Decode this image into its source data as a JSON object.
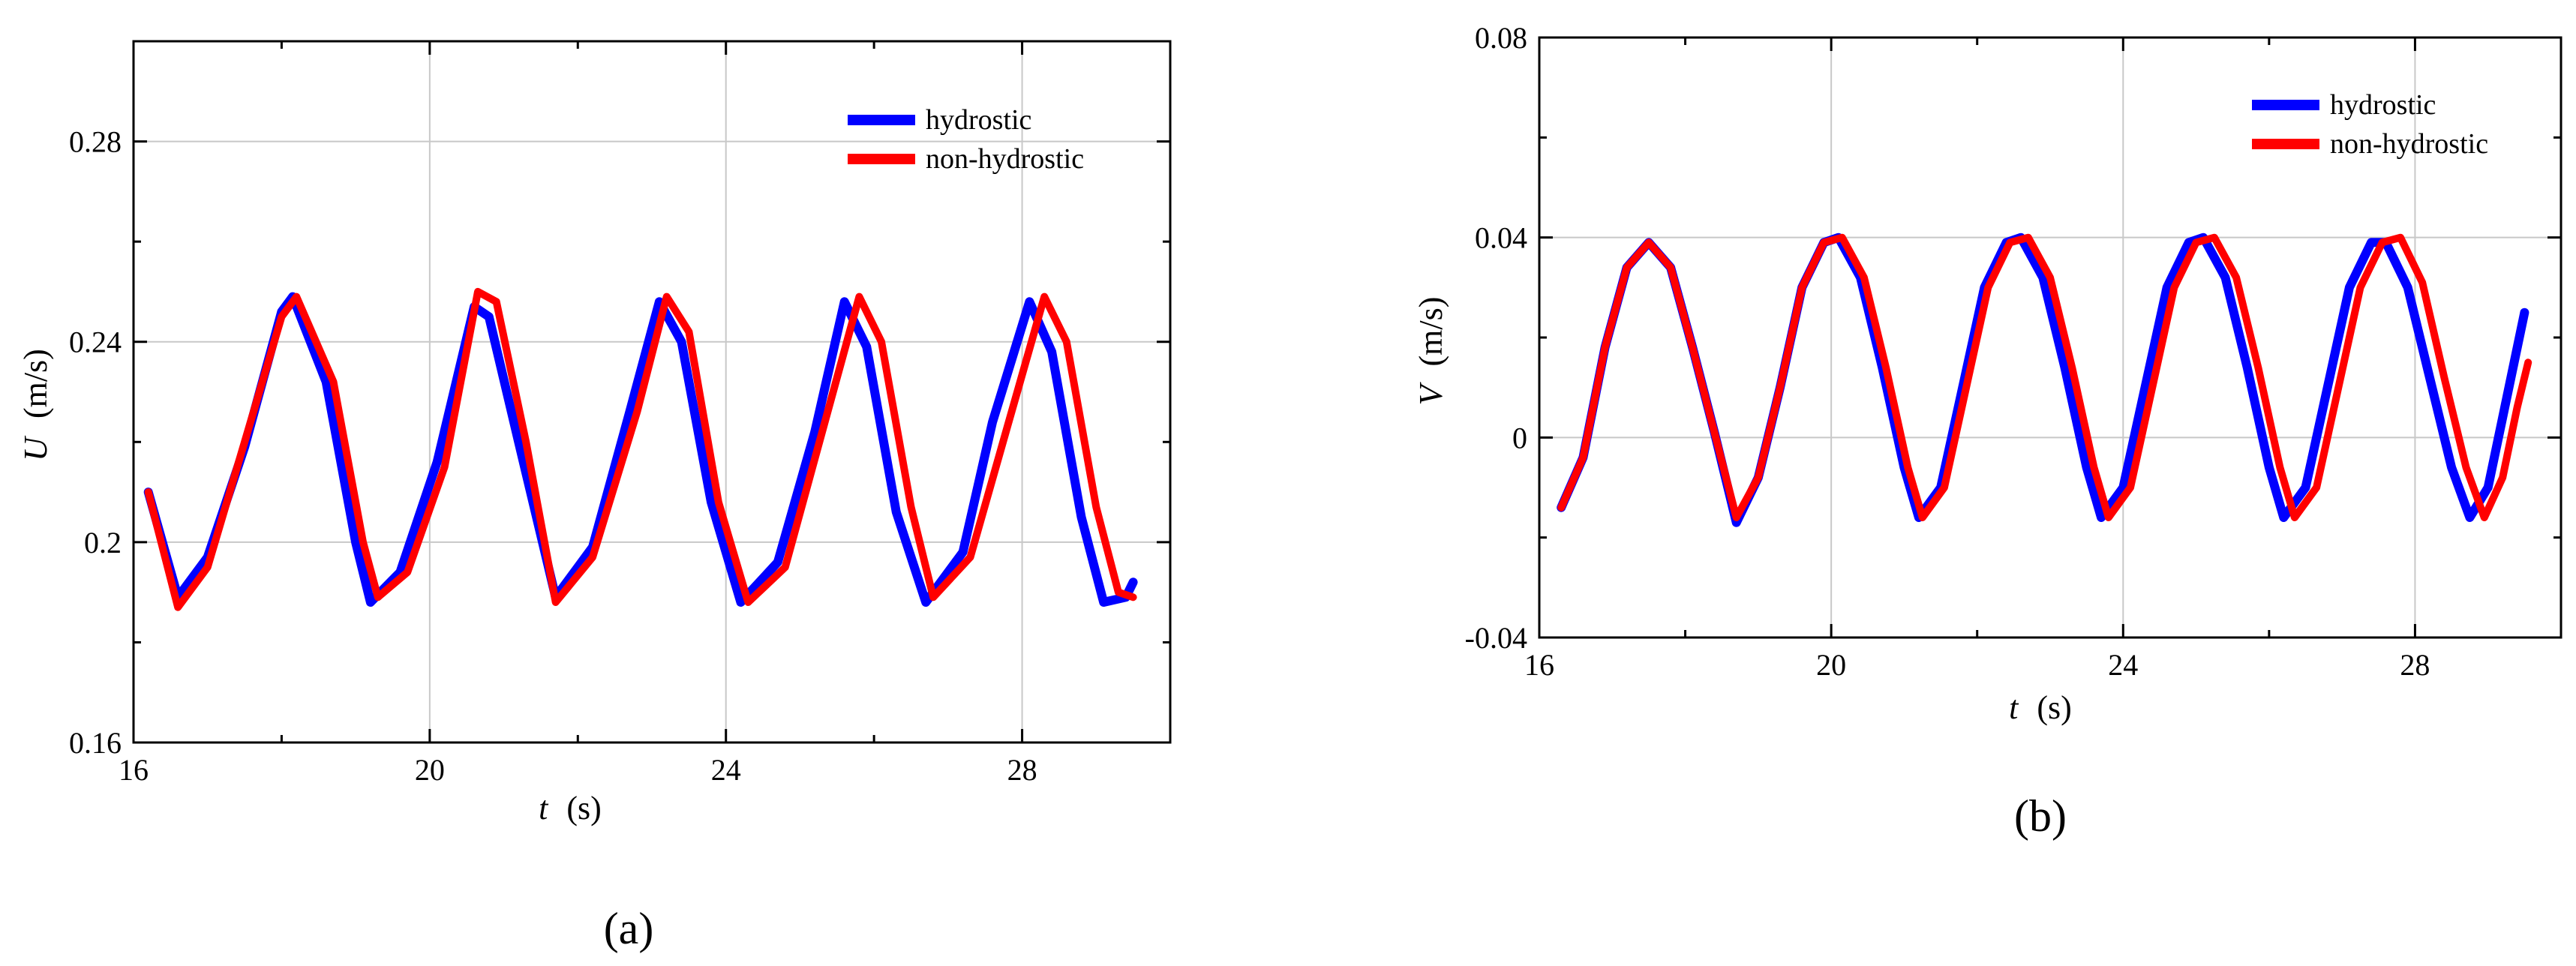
{
  "figure": {
    "panel_labels": [
      "(a)",
      "(b)"
    ],
    "colors": {
      "hydrostic": "#0000ff",
      "non-hydrostic": "#ff0000"
    }
  },
  "chart_data": [
    {
      "type": "line",
      "panel": "(a)",
      "title": "",
      "xlabel": "t",
      "xlabel_unit": "(s)",
      "ylabel": "U",
      "ylabel_unit": "(m/s)",
      "xlim": [
        16,
        30
      ],
      "ylim": [
        0.16,
        0.3
      ],
      "xticks": [
        16,
        20,
        24,
        28
      ],
      "xtick_labels": [
        "16",
        "20",
        "24",
        "28"
      ],
      "yticks": [
        0.16,
        0.2,
        0.24,
        0.28
      ],
      "ytick_labels": [
        "0.16",
        "0.2",
        "0.24",
        "0.28"
      ],
      "grid": true,
      "legend_position": "top-right",
      "series": [
        {
          "name": "hydrostic",
          "color": "#0000ff",
          "points": [
            [
              16.2,
              0.21
            ],
            [
              16.6,
              0.189
            ],
            [
              17.0,
              0.197
            ],
            [
              17.5,
              0.219
            ],
            [
              18.0,
              0.246
            ],
            [
              18.15,
              0.249
            ],
            [
              18.6,
              0.232
            ],
            [
              19.0,
              0.2
            ],
            [
              19.2,
              0.188
            ],
            [
              19.6,
              0.194
            ],
            [
              20.1,
              0.216
            ],
            [
              20.6,
              0.247
            ],
            [
              20.8,
              0.245
            ],
            [
              21.2,
              0.22
            ],
            [
              21.7,
              0.189
            ],
            [
              22.2,
              0.199
            ],
            [
              22.7,
              0.226
            ],
            [
              23.1,
              0.248
            ],
            [
              23.4,
              0.24
            ],
            [
              23.8,
              0.208
            ],
            [
              24.2,
              0.188
            ],
            [
              24.7,
              0.196
            ],
            [
              25.2,
              0.222
            ],
            [
              25.6,
              0.248
            ],
            [
              25.9,
              0.239
            ],
            [
              26.3,
              0.206
            ],
            [
              26.7,
              0.188
            ],
            [
              27.2,
              0.198
            ],
            [
              27.6,
              0.224
            ],
            [
              28.1,
              0.248
            ],
            [
              28.4,
              0.238
            ],
            [
              28.8,
              0.205
            ],
            [
              29.1,
              0.188
            ],
            [
              29.4,
              0.189
            ],
            [
              29.5,
              0.192
            ]
          ]
        },
        {
          "name": "non-hydrostic",
          "color": "#ff0000",
          "points": [
            [
              16.2,
              0.21
            ],
            [
              16.6,
              0.187
            ],
            [
              17.0,
              0.195
            ],
            [
              17.5,
              0.22
            ],
            [
              18.0,
              0.245
            ],
            [
              18.2,
              0.249
            ],
            [
              18.7,
              0.232
            ],
            [
              19.1,
              0.2
            ],
            [
              19.3,
              0.189
            ],
            [
              19.7,
              0.194
            ],
            [
              20.2,
              0.215
            ],
            [
              20.65,
              0.25
            ],
            [
              20.9,
              0.248
            ],
            [
              21.3,
              0.22
            ],
            [
              21.7,
              0.188
            ],
            [
              22.2,
              0.197
            ],
            [
              22.8,
              0.226
            ],
            [
              23.2,
              0.249
            ],
            [
              23.5,
              0.242
            ],
            [
              23.9,
              0.208
            ],
            [
              24.3,
              0.188
            ],
            [
              24.8,
              0.195
            ],
            [
              25.3,
              0.222
            ],
            [
              25.8,
              0.249
            ],
            [
              26.1,
              0.24
            ],
            [
              26.5,
              0.207
            ],
            [
              26.8,
              0.189
            ],
            [
              27.3,
              0.197
            ],
            [
              27.8,
              0.223
            ],
            [
              28.3,
              0.249
            ],
            [
              28.6,
              0.24
            ],
            [
              29.0,
              0.207
            ],
            [
              29.3,
              0.19
            ],
            [
              29.5,
              0.189
            ]
          ]
        }
      ]
    },
    {
      "type": "line",
      "panel": "(b)",
      "title": "",
      "xlabel": "t",
      "xlabel_unit": "(s)",
      "ylabel": "V",
      "ylabel_unit": "(m/s)",
      "xlim": [
        16,
        30
      ],
      "ylim": [
        -0.04,
        0.08
      ],
      "xticks": [
        16,
        20,
        24,
        28
      ],
      "xtick_labels": [
        "16",
        "20",
        "24",
        "28"
      ],
      "yticks": [
        -0.04,
        0,
        0.04,
        0.08
      ],
      "ytick_labels": [
        "-0.04",
        "0",
        "0.04",
        "0.08"
      ],
      "grid": true,
      "legend_position": "top-right",
      "series": [
        {
          "name": "hydrostic",
          "color": "#0000ff",
          "points": [
            [
              16.3,
              -0.014
            ],
            [
              16.6,
              -0.004
            ],
            [
              16.9,
              0.018
            ],
            [
              17.2,
              0.034
            ],
            [
              17.5,
              0.039
            ],
            [
              17.8,
              0.034
            ],
            [
              18.1,
              0.018
            ],
            [
              18.4,
              0.001
            ],
            [
              18.7,
              -0.017
            ],
            [
              19.0,
              -0.008
            ],
            [
              19.3,
              0.01
            ],
            [
              19.6,
              0.03
            ],
            [
              19.9,
              0.039
            ],
            [
              20.1,
              0.04
            ],
            [
              20.4,
              0.032
            ],
            [
              20.7,
              0.014
            ],
            [
              21.0,
              -0.006
            ],
            [
              21.2,
              -0.016
            ],
            [
              21.5,
              -0.01
            ],
            [
              21.8,
              0.01
            ],
            [
              22.1,
              0.03
            ],
            [
              22.4,
              0.039
            ],
            [
              22.6,
              0.04
            ],
            [
              22.9,
              0.032
            ],
            [
              23.2,
              0.014
            ],
            [
              23.5,
              -0.006
            ],
            [
              23.7,
              -0.016
            ],
            [
              24.0,
              -0.01
            ],
            [
              24.3,
              0.01
            ],
            [
              24.6,
              0.03
            ],
            [
              24.9,
              0.039
            ],
            [
              25.1,
              0.04
            ],
            [
              25.4,
              0.032
            ],
            [
              25.7,
              0.014
            ],
            [
              26.0,
              -0.006
            ],
            [
              26.2,
              -0.016
            ],
            [
              26.5,
              -0.01
            ],
            [
              26.8,
              0.01
            ],
            [
              27.1,
              0.03
            ],
            [
              27.4,
              0.039
            ],
            [
              27.6,
              0.039
            ],
            [
              27.9,
              0.03
            ],
            [
              28.2,
              0.012
            ],
            [
              28.5,
              -0.006
            ],
            [
              28.75,
              -0.016
            ],
            [
              29.0,
              -0.01
            ],
            [
              29.2,
              0.004
            ],
            [
              29.5,
              0.025
            ]
          ]
        },
        {
          "name": "non-hydrostic",
          "color": "#ff0000",
          "points": [
            [
              16.3,
              -0.014
            ],
            [
              16.6,
              -0.004
            ],
            [
              16.9,
              0.018
            ],
            [
              17.2,
              0.034
            ],
            [
              17.5,
              0.039
            ],
            [
              17.8,
              0.034
            ],
            [
              18.1,
              0.018
            ],
            [
              18.4,
              0.001
            ],
            [
              18.7,
              -0.016
            ],
            [
              19.0,
              -0.008
            ],
            [
              19.3,
              0.01
            ],
            [
              19.6,
              0.03
            ],
            [
              19.9,
              0.039
            ],
            [
              20.15,
              0.04
            ],
            [
              20.45,
              0.032
            ],
            [
              20.75,
              0.014
            ],
            [
              21.05,
              -0.006
            ],
            [
              21.25,
              -0.016
            ],
            [
              21.55,
              -0.01
            ],
            [
              21.85,
              0.01
            ],
            [
              22.15,
              0.03
            ],
            [
              22.45,
              0.039
            ],
            [
              22.7,
              0.04
            ],
            [
              23.0,
              0.032
            ],
            [
              23.3,
              0.014
            ],
            [
              23.6,
              -0.006
            ],
            [
              23.8,
              -0.016
            ],
            [
              24.1,
              -0.01
            ],
            [
              24.4,
              0.01
            ],
            [
              24.7,
              0.03
            ],
            [
              25.0,
              0.039
            ],
            [
              25.25,
              0.04
            ],
            [
              25.55,
              0.032
            ],
            [
              25.85,
              0.014
            ],
            [
              26.15,
              -0.006
            ],
            [
              26.35,
              -0.016
            ],
            [
              26.65,
              -0.01
            ],
            [
              26.95,
              0.01
            ],
            [
              27.25,
              0.03
            ],
            [
              27.55,
              0.039
            ],
            [
              27.8,
              0.04
            ],
            [
              28.1,
              0.031
            ],
            [
              28.4,
              0.012
            ],
            [
              28.7,
              -0.006
            ],
            [
              28.95,
              -0.016
            ],
            [
              29.2,
              -0.008
            ],
            [
              29.4,
              0.006
            ],
            [
              29.55,
              0.015
            ]
          ]
        }
      ]
    }
  ]
}
